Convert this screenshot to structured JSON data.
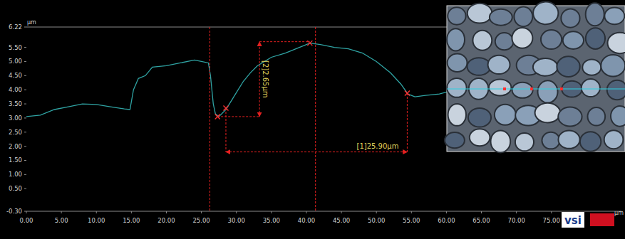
{
  "chart_data": {
    "type": "line",
    "y_label": "μm",
    "x_label": "μm",
    "x": [
      0,
      2,
      4,
      6,
      8,
      10,
      12,
      14,
      14.8,
      15.3,
      16,
      17,
      18,
      20,
      22,
      24,
      25,
      26,
      26.3,
      26.7,
      27,
      27.5,
      28.5,
      30,
      31,
      32,
      33,
      34,
      35,
      37,
      39,
      40.5,
      42,
      44,
      46,
      48,
      50,
      52,
      53.5,
      54.5,
      55.5,
      57,
      59,
      60.5
    ],
    "values": [
      3.05,
      3.1,
      3.3,
      3.4,
      3.5,
      3.48,
      3.4,
      3.32,
      3.3,
      4.0,
      4.4,
      4.5,
      4.8,
      4.85,
      4.95,
      5.05,
      5.0,
      4.95,
      4.5,
      3.5,
      3.15,
      3.05,
      3.3,
      3.9,
      4.3,
      4.6,
      4.85,
      5.0,
      5.15,
      5.3,
      5.5,
      5.65,
      5.6,
      5.5,
      5.45,
      5.3,
      5.0,
      4.6,
      4.2,
      3.85,
      3.75,
      3.8,
      3.85,
      3.95
    ],
    "color": "#2fa3a3",
    "xlim": [
      0,
      85
    ],
    "ylim": [
      -0.3,
      6.22
    ],
    "xticks": [
      {
        "value": 0,
        "label": "0.00"
      },
      {
        "value": 5,
        "label": "5.00"
      },
      {
        "value": 10,
        "label": "10.00"
      },
      {
        "value": 15,
        "label": "15.00"
      },
      {
        "value": 20,
        "label": "20.00"
      },
      {
        "value": 25,
        "label": "25.00"
      },
      {
        "value": 30,
        "label": "30.00"
      },
      {
        "value": 35,
        "label": "35.00"
      },
      {
        "value": 40,
        "label": "40.00"
      },
      {
        "value": 45,
        "label": "45.00"
      },
      {
        "value": 50,
        "label": "50.00"
      },
      {
        "value": 55,
        "label": "55.00"
      },
      {
        "value": 60,
        "label": "60.00"
      },
      {
        "value": 65,
        "label": "65.00"
      },
      {
        "value": 70,
        "label": "70.00"
      },
      {
        "value": 75,
        "label": "75.00"
      }
    ],
    "yticks": [
      {
        "value": -0.3,
        "label": "-0.30"
      },
      {
        "value": 0.5,
        "label": "0.50"
      },
      {
        "value": 1,
        "label": "1.00"
      },
      {
        "value": 1.5,
        "label": "1.50"
      },
      {
        "value": 2,
        "label": "2.00"
      },
      {
        "value": 2.5,
        "label": "2.50"
      },
      {
        "value": 3,
        "label": "3.00"
      },
      {
        "value": 3.5,
        "label": "3.50"
      },
      {
        "value": 4,
        "label": "4.00"
      },
      {
        "value": 4.5,
        "label": "4.50"
      },
      {
        "value": 5,
        "label": "5.00"
      },
      {
        "value": 5.5,
        "label": "5.50"
      },
      {
        "value": 6.22,
        "label": "6.22"
      }
    ],
    "grid": false,
    "cursors": [
      26.2,
      41.3
    ],
    "markers": {
      "x": [
        27.3,
        28.5,
        40.5,
        54.4
      ],
      "y": [
        3.05,
        3.35,
        5.65,
        3.88
      ]
    },
    "measurements": [
      {
        "label": "[1]25.90μm",
        "value": 25.9,
        "x1": 28.5,
        "x2": 54.4,
        "y": 1.8
      },
      {
        "label": "[2]2.65μm",
        "value": 2.65,
        "x": 33.3,
        "y1": 3.05,
        "y2": 5.7
      }
    ],
    "logo": "vsi"
  }
}
